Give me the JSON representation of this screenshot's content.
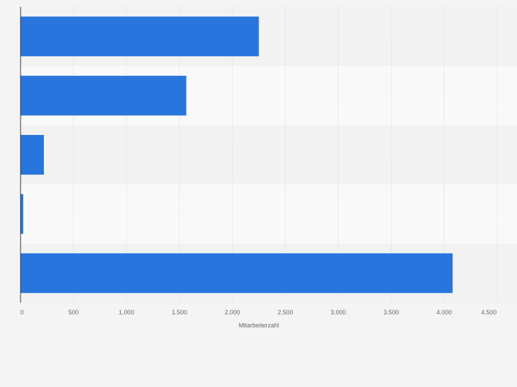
{
  "chart_data": {
    "type": "bar",
    "orientation": "horizontal",
    "categories": [
      "",
      "",
      "",
      "",
      ""
    ],
    "values": [
      2250,
      1565,
      220,
      25,
      4080
    ],
    "title": "",
    "xlabel": "Mitarbeiterzahl",
    "ylabel": "",
    "xlim": [
      0,
      4500
    ],
    "xticks": [
      0,
      500,
      1000,
      1500,
      2000,
      2500,
      3000,
      3500,
      4000,
      4500
    ],
    "xtick_labels": [
      "0",
      "500",
      "1.000",
      "1.500",
      "2.000",
      "2.500",
      "3.000",
      "3.500",
      "4.000",
      "4.500"
    ],
    "grid": true,
    "legend": "none"
  },
  "colors": {
    "bar": "#2876dd",
    "background": "#f4f4f4",
    "band_light": "#f9f9f9",
    "band_dark": "#f2f2f2",
    "gridline": "#dcdcdc",
    "axis": "#333333",
    "tick_text": "#666666"
  }
}
